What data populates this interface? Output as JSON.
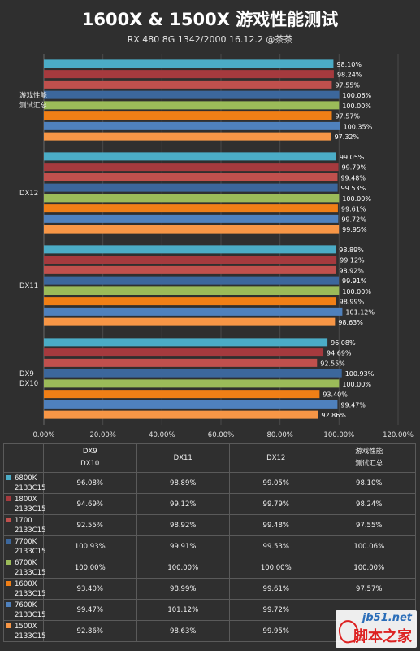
{
  "chart_data": {
    "type": "bar",
    "orientation": "horizontal",
    "title": "1600X & 1500X 游戏性能测试",
    "subtitle": "RX 480 8G 1342/2000  16.12.2 @茶茶",
    "categories": [
      [
        "游戏性能",
        "测试汇总"
      ],
      [
        "DX12"
      ],
      [
        "DX11"
      ],
      [
        "DX9",
        "DX10"
      ]
    ],
    "xlim": [
      0,
      120
    ],
    "x_ticks": [
      "0.00%",
      "20.00%",
      "40.00%",
      "60.00%",
      "80.00%",
      "100.00%",
      "120.00%"
    ],
    "grid": true,
    "series": [
      {
        "name": [
          "6800K",
          "2133C15"
        ],
        "color": "#4bacc6",
        "values": [
          98.1,
          99.05,
          98.89,
          96.08
        ],
        "labels": [
          "98.10%",
          "99.05%",
          "98.89%",
          "96.08%"
        ]
      },
      {
        "name": [
          "1800X",
          "2133C15"
        ],
        "color": "#a53a3e",
        "values": [
          98.24,
          99.79,
          99.12,
          94.69
        ],
        "labels": [
          "98.24%",
          "99.79%",
          "99.12%",
          "94.69%"
        ]
      },
      {
        "name": [
          "1700",
          "2133C15"
        ],
        "color": "#c0504d",
        "values": [
          97.55,
          99.48,
          98.92,
          92.55
        ],
        "labels": [
          "97.55%",
          "99.48%",
          "98.92%",
          "92.55%"
        ]
      },
      {
        "name": [
          "7700K",
          "2133C15"
        ],
        "color": "#3c679c",
        "values": [
          100.06,
          99.53,
          99.91,
          100.93
        ],
        "labels": [
          "100.06%",
          "99.53%",
          "99.91%",
          "100.93%"
        ]
      },
      {
        "name": [
          "6700K",
          "2133C15"
        ],
        "color": "#9bbb59",
        "values": [
          100.0,
          100.0,
          100.0,
          100.0
        ],
        "labels": [
          "100.00%",
          "100.00%",
          "100.00%",
          "100.00%"
        ]
      },
      {
        "name": [
          "1600X",
          "2133C15"
        ],
        "color": "#f07f16",
        "values": [
          97.57,
          99.61,
          98.99,
          93.4
        ],
        "labels": [
          "97.57%",
          "99.61%",
          "98.99%",
          "93.40%"
        ]
      },
      {
        "name": [
          "7600K",
          "2133C15"
        ],
        "color": "#4f81bd",
        "values": [
          100.35,
          99.72,
          101.12,
          99.47
        ],
        "labels": [
          "100.35%",
          "99.72%",
          "101.12%",
          "99.47%"
        ]
      },
      {
        "name": [
          "1500X",
          "2133C15"
        ],
        "color": "#f79646",
        "values": [
          97.32,
          99.95,
          98.63,
          92.86
        ],
        "labels": [
          "97.32%",
          "99.95%",
          "98.63%",
          "92.86%"
        ]
      }
    ]
  },
  "table": {
    "headers": [
      [
        "DX9",
        "DX10"
      ],
      [
        "DX11"
      ],
      [
        "DX12"
      ],
      [
        "游戏性能",
        "测试汇总"
      ]
    ],
    "rows": [
      [
        "96.08%",
        "98.89%",
        "99.05%",
        "98.10%"
      ],
      [
        "94.69%",
        "99.12%",
        "99.79%",
        "98.24%"
      ],
      [
        "92.55%",
        "98.92%",
        "99.48%",
        "97.55%"
      ],
      [
        "100.93%",
        "99.91%",
        "99.53%",
        "100.06%"
      ],
      [
        "100.00%",
        "100.00%",
        "100.00%",
        "100.00%"
      ],
      [
        "93.40%",
        "98.99%",
        "99.61%",
        "97.57%"
      ],
      [
        "99.47%",
        "101.12%",
        "99.72%",
        ""
      ],
      [
        "92.86%",
        "98.63%",
        "99.95%",
        ""
      ]
    ]
  },
  "watermark": {
    "url": "jb51.net",
    "name": "脚本之家"
  }
}
